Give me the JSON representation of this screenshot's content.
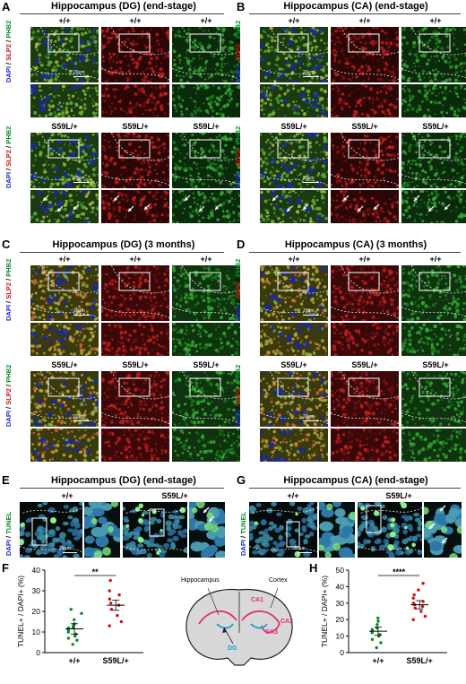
{
  "panels": {
    "A": {
      "letter": "A",
      "title": "Hippocampus (DG) (end-stage)",
      "wt": "+/+",
      "mut": "S59L/+",
      "ylabel": [
        "DAPI",
        "/",
        "SLP2",
        "/",
        "PHB2"
      ],
      "scale": "20μm"
    },
    "B": {
      "letter": "B",
      "title": "Hippocampus (CA) (end-stage)",
      "wt": "+/+",
      "mut": "S59L/+",
      "ylabel": [
        "DAPI",
        "/",
        "SLP2",
        "/",
        "PHB2"
      ],
      "scale": "20μm"
    },
    "C": {
      "letter": "C",
      "title": "Hippocampus (DG) (3 months)",
      "wt": "+/+",
      "mut": "S59L/+",
      "ylabel": [
        "DAPI",
        "/",
        "SLP2",
        "/",
        "PHB2"
      ],
      "scale": "20μm"
    },
    "D": {
      "letter": "D",
      "title": "Hippocampus (CA) (3 months)",
      "wt": "+/+",
      "mut": "S59L/+",
      "ylabel": [
        "DAPI",
        "/",
        "SLP2",
        "/",
        "PHB2"
      ],
      "scale": "20μm"
    },
    "E": {
      "letter": "E",
      "title": "Hippocampus (DG) (end-stage)",
      "wt": "+/+",
      "mut": "S59L/+",
      "ylabel": [
        "DAPI",
        "/",
        "TUNEL"
      ],
      "scale": "20μm"
    },
    "G": {
      "letter": "G",
      "title": "Hippocampus (CA) (end-stage)",
      "wt": "+/+",
      "mut": "S59L/+",
      "ylabel": [
        "DAPI",
        "/",
        "TUNEL"
      ],
      "scale": "20μm"
    },
    "F": {
      "letter": "F",
      "ylabel": "TUNEL+ / DAPI+ (%)",
      "significance": "**"
    },
    "H": {
      "letter": "H",
      "ylabel": "TUNEL+ / DAPI+ (%)",
      "significance": "****"
    }
  },
  "brain": {
    "hippocampus": "Hippocampus",
    "cortex": "Cortex",
    "ca1": "CA1",
    "ca2": "CA2",
    "ca3": "CA3",
    "dg": "DG"
  },
  "colors": {
    "red": "#d01010",
    "green": "#0a8a2a",
    "blue": "#1a2bd6",
    "magenta": "#e0307a",
    "cyan": "#1aa0c8"
  },
  "chart_data": [
    {
      "type": "scatter",
      "panel": "F",
      "categories": [
        "+/+",
        "S59L/+"
      ],
      "ylabel": "TUNEL+ / DAPI+ (%)",
      "ylim": [
        0,
        40
      ],
      "yticks": [
        0,
        10,
        20,
        30,
        40
      ],
      "series": [
        {
          "category": "+/+",
          "color": "#0a8a2a",
          "values": [
            4,
            6,
            7,
            8,
            9,
            10,
            11,
            12,
            12,
            13,
            14,
            16,
            19,
            21
          ],
          "mean": 11.5
        },
        {
          "category": "S59L/+",
          "color": "#d01010",
          "values": [
            13,
            15,
            18,
            21,
            23,
            24,
            26,
            28,
            30,
            35
          ],
          "mean": 23
        }
      ]
    },
    {
      "type": "scatter",
      "panel": "H",
      "categories": [
        "+/+",
        "S59L/+"
      ],
      "ylabel": "TUNEL+ / DAPI+ (%)",
      "ylim": [
        0,
        50
      ],
      "yticks": [
        0,
        10,
        20,
        30,
        40,
        50
      ],
      "series": [
        {
          "category": "+/+",
          "color": "#0a8a2a",
          "values": [
            3,
            6,
            8,
            10,
            11,
            12,
            13,
            14,
            15,
            17,
            19,
            21
          ],
          "mean": 13
        },
        {
          "category": "S59L/+",
          "color": "#d01010",
          "values": [
            20,
            22,
            25,
            27,
            28,
            29,
            30,
            31,
            33,
            35,
            38,
            42
          ],
          "mean": 29
        }
      ]
    }
  ]
}
